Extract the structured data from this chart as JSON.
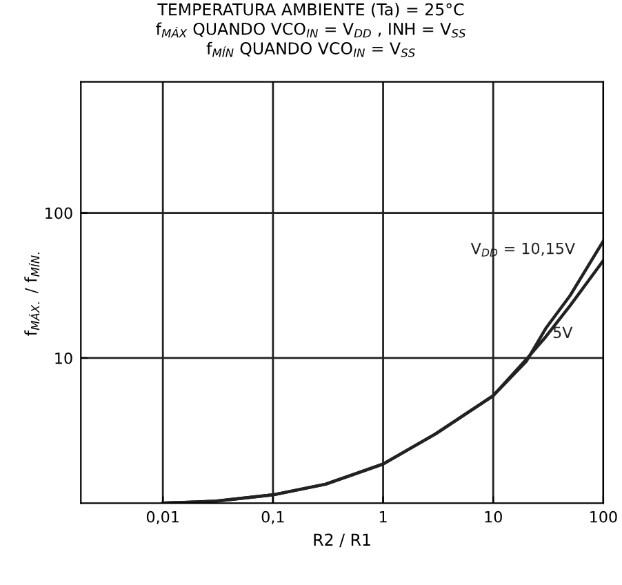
{
  "chart_data": {
    "type": "line",
    "title": "TEMPERATURA AMBIENTE (Ta) = 25°C\nf$_{MÁX}$ QUANDO VCO$_{IN}$ = V$_{DD}$ , INH = V$_{SS}$\nf$_{MÍN}$ QUANDO VCO$_{IN}$ = V$_{SS}$",
    "xlabel": "R2 / R1",
    "ylabel": "f$_{MÁX.}$ / f$_{MÍN.}$",
    "log": "xy",
    "grid": true,
    "marker": "none",
    "line_style": "solid",
    "xlim": [
      0.0018,
      100
    ],
    "ylim": [
      1,
      800
    ],
    "xticks": [
      {
        "value": 0.01,
        "label": "0,01"
      },
      {
        "value": 0.1,
        "label": "0,1"
      },
      1,
      10,
      100
    ],
    "yticks": [
      10,
      100
    ],
    "series": [
      {
        "name": "V$_{DD}$ = 10,15V",
        "color": "#222222",
        "x": [
          0.01,
          0.03,
          0.1,
          0.3,
          1,
          3,
          10,
          20,
          30,
          50,
          100
        ],
        "values": [
          1.0,
          1.03,
          1.14,
          1.35,
          1.86,
          3.0,
          5.5,
          9.5,
          16,
          27,
          64
        ]
      },
      {
        "name": "5V",
        "color": "#222222",
        "x": [
          0.01,
          0.03,
          0.1,
          0.3,
          1,
          3,
          10,
          20,
          30,
          50,
          100
        ],
        "values": [
          1.0,
          1.03,
          1.14,
          1.35,
          1.86,
          3.0,
          5.5,
          9.8,
          14,
          23,
          47
        ]
      }
    ]
  }
}
